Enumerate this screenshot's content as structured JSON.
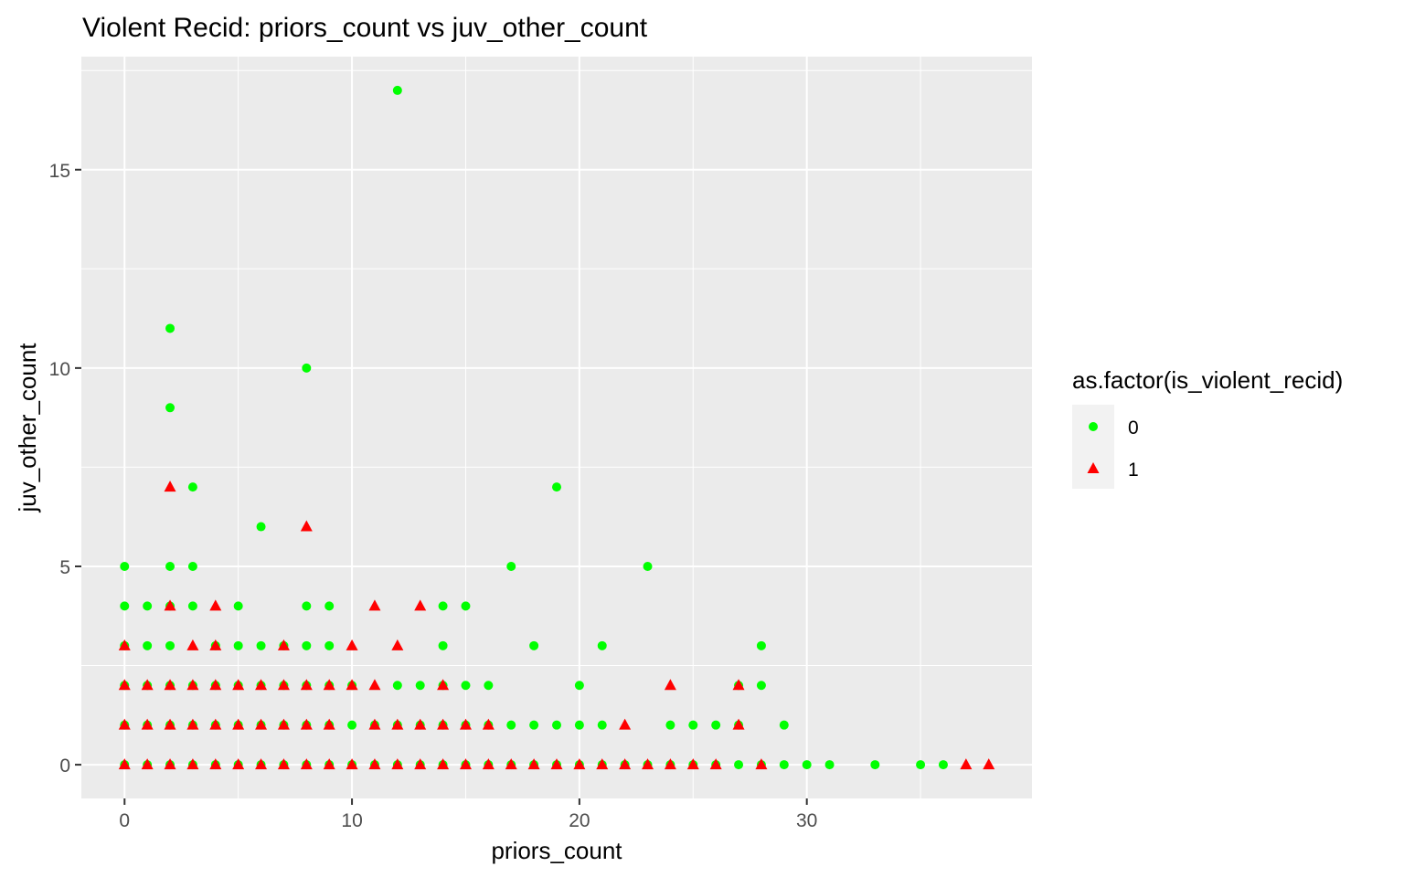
{
  "chart_data": {
    "type": "scatter",
    "title": "Violent Recid: priors_count vs juv_other_count",
    "xlabel": "priors_count",
    "ylabel": "juv_other_count",
    "xlim": [
      -1.9,
      39.9
    ],
    "ylim": [
      -0.85,
      17.85
    ],
    "x_ticks": [
      0,
      10,
      20,
      30
    ],
    "y_ticks": [
      0,
      5,
      10,
      15
    ],
    "grid": true,
    "legend_position": "right",
    "legend": {
      "title": "as.factor(is_violent_recid)",
      "entries": [
        {
          "label": "0",
          "color": "#00ff00",
          "shape": "circle"
        },
        {
          "label": "1",
          "color": "#ff0000",
          "shape": "triangle"
        }
      ]
    },
    "panel_background": "#ebebeb",
    "series": [
      {
        "name": "0",
        "color": "#00ff00",
        "shape": "circle",
        "points": [
          [
            0,
            0
          ],
          [
            1,
            0
          ],
          [
            2,
            0
          ],
          [
            3,
            0
          ],
          [
            4,
            0
          ],
          [
            5,
            0
          ],
          [
            6,
            0
          ],
          [
            7,
            0
          ],
          [
            8,
            0
          ],
          [
            9,
            0
          ],
          [
            10,
            0
          ],
          [
            11,
            0
          ],
          [
            12,
            0
          ],
          [
            13,
            0
          ],
          [
            14,
            0
          ],
          [
            15,
            0
          ],
          [
            16,
            0
          ],
          [
            17,
            0
          ],
          [
            18,
            0
          ],
          [
            19,
            0
          ],
          [
            20,
            0
          ],
          [
            21,
            0
          ],
          [
            22,
            0
          ],
          [
            23,
            0
          ],
          [
            24,
            0
          ],
          [
            25,
            0
          ],
          [
            26,
            0
          ],
          [
            27,
            0
          ],
          [
            28,
            0
          ],
          [
            29,
            0
          ],
          [
            30,
            0
          ],
          [
            31,
            0
          ],
          [
            33,
            0
          ],
          [
            35,
            0
          ],
          [
            36,
            0
          ],
          [
            0,
            1
          ],
          [
            1,
            1
          ],
          [
            2,
            1
          ],
          [
            3,
            1
          ],
          [
            4,
            1
          ],
          [
            5,
            1
          ],
          [
            6,
            1
          ],
          [
            7,
            1
          ],
          [
            8,
            1
          ],
          [
            9,
            1
          ],
          [
            10,
            1
          ],
          [
            11,
            1
          ],
          [
            12,
            1
          ],
          [
            13,
            1
          ],
          [
            14,
            1
          ],
          [
            15,
            1
          ],
          [
            16,
            1
          ],
          [
            17,
            1
          ],
          [
            18,
            1
          ],
          [
            19,
            1
          ],
          [
            20,
            1
          ],
          [
            21,
            1
          ],
          [
            24,
            1
          ],
          [
            25,
            1
          ],
          [
            26,
            1
          ],
          [
            27,
            1
          ],
          [
            29,
            1
          ],
          [
            0,
            2
          ],
          [
            1,
            2
          ],
          [
            2,
            2
          ],
          [
            3,
            2
          ],
          [
            4,
            2
          ],
          [
            5,
            2
          ],
          [
            6,
            2
          ],
          [
            7,
            2
          ],
          [
            8,
            2
          ],
          [
            9,
            2
          ],
          [
            10,
            2
          ],
          [
            12,
            2
          ],
          [
            13,
            2
          ],
          [
            14,
            2
          ],
          [
            15,
            2
          ],
          [
            16,
            2
          ],
          [
            20,
            2
          ],
          [
            27,
            2
          ],
          [
            28,
            2
          ],
          [
            0,
            3
          ],
          [
            1,
            3
          ],
          [
            2,
            3
          ],
          [
            4,
            3
          ],
          [
            5,
            3
          ],
          [
            6,
            3
          ],
          [
            7,
            3
          ],
          [
            8,
            3
          ],
          [
            9,
            3
          ],
          [
            14,
            3
          ],
          [
            18,
            3
          ],
          [
            21,
            3
          ],
          [
            28,
            3
          ],
          [
            0,
            4
          ],
          [
            1,
            4
          ],
          [
            2,
            4
          ],
          [
            3,
            4
          ],
          [
            5,
            4
          ],
          [
            8,
            4
          ],
          [
            9,
            4
          ],
          [
            14,
            4
          ],
          [
            15,
            4
          ],
          [
            0,
            5
          ],
          [
            2,
            5
          ],
          [
            3,
            5
          ],
          [
            17,
            5
          ],
          [
            23,
            5
          ],
          [
            6,
            6
          ],
          [
            3,
            7
          ],
          [
            19,
            7
          ],
          [
            2,
            9
          ],
          [
            8,
            10
          ],
          [
            2,
            11
          ],
          [
            12,
            17
          ]
        ]
      },
      {
        "name": "1",
        "color": "#ff0000",
        "shape": "triangle",
        "points": [
          [
            0,
            0
          ],
          [
            1,
            0
          ],
          [
            2,
            0
          ],
          [
            3,
            0
          ],
          [
            4,
            0
          ],
          [
            5,
            0
          ],
          [
            6,
            0
          ],
          [
            7,
            0
          ],
          [
            8,
            0
          ],
          [
            9,
            0
          ],
          [
            10,
            0
          ],
          [
            11,
            0
          ],
          [
            12,
            0
          ],
          [
            13,
            0
          ],
          [
            14,
            0
          ],
          [
            15,
            0
          ],
          [
            16,
            0
          ],
          [
            17,
            0
          ],
          [
            18,
            0
          ],
          [
            19,
            0
          ],
          [
            20,
            0
          ],
          [
            21,
            0
          ],
          [
            22,
            0
          ],
          [
            23,
            0
          ],
          [
            24,
            0
          ],
          [
            25,
            0
          ],
          [
            26,
            0
          ],
          [
            28,
            0
          ],
          [
            37,
            0
          ],
          [
            38,
            0
          ],
          [
            0,
            1
          ],
          [
            1,
            1
          ],
          [
            2,
            1
          ],
          [
            3,
            1
          ],
          [
            4,
            1
          ],
          [
            5,
            1
          ],
          [
            6,
            1
          ],
          [
            7,
            1
          ],
          [
            8,
            1
          ],
          [
            9,
            1
          ],
          [
            11,
            1
          ],
          [
            12,
            1
          ],
          [
            13,
            1
          ],
          [
            14,
            1
          ],
          [
            15,
            1
          ],
          [
            16,
            1
          ],
          [
            22,
            1
          ],
          [
            27,
            1
          ],
          [
            0,
            2
          ],
          [
            1,
            2
          ],
          [
            2,
            2
          ],
          [
            3,
            2
          ],
          [
            4,
            2
          ],
          [
            5,
            2
          ],
          [
            6,
            2
          ],
          [
            7,
            2
          ],
          [
            8,
            2
          ],
          [
            9,
            2
          ],
          [
            10,
            2
          ],
          [
            11,
            2
          ],
          [
            14,
            2
          ],
          [
            24,
            2
          ],
          [
            27,
            2
          ],
          [
            0,
            3
          ],
          [
            3,
            3
          ],
          [
            4,
            3
          ],
          [
            7,
            3
          ],
          [
            10,
            3
          ],
          [
            12,
            3
          ],
          [
            2,
            4
          ],
          [
            4,
            4
          ],
          [
            11,
            4
          ],
          [
            13,
            4
          ],
          [
            8,
            6
          ],
          [
            2,
            7
          ]
        ]
      }
    ]
  }
}
